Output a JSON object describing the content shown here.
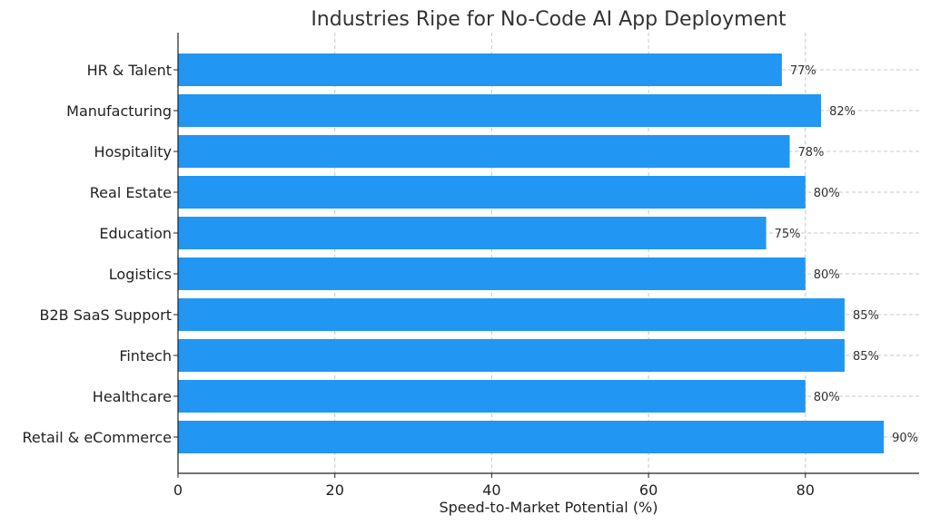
{
  "chart_data": {
    "type": "bar",
    "orientation": "horizontal",
    "title": "Industries Ripe for No-Code AI App Deployment",
    "xlabel": "Speed-to-Market Potential (%)",
    "ylabel": "",
    "xlim": [
      0,
      94.5
    ],
    "xticks": [
      0,
      20,
      40,
      60,
      80
    ],
    "grid": true,
    "categories": [
      "Retail & eCommerce",
      "Healthcare",
      "Fintech",
      "B2B SaaS Support",
      "Logistics",
      "Education",
      "Real Estate",
      "Hospitality",
      "Manufacturing",
      "HR & Talent"
    ],
    "values": [
      90,
      80,
      85,
      85,
      80,
      75,
      80,
      78,
      82,
      77
    ],
    "value_labels": [
      "90%",
      "80%",
      "85%",
      "85%",
      "80%",
      "75%",
      "80%",
      "78%",
      "82%",
      "77%"
    ],
    "bar_color": "#2196f3"
  }
}
